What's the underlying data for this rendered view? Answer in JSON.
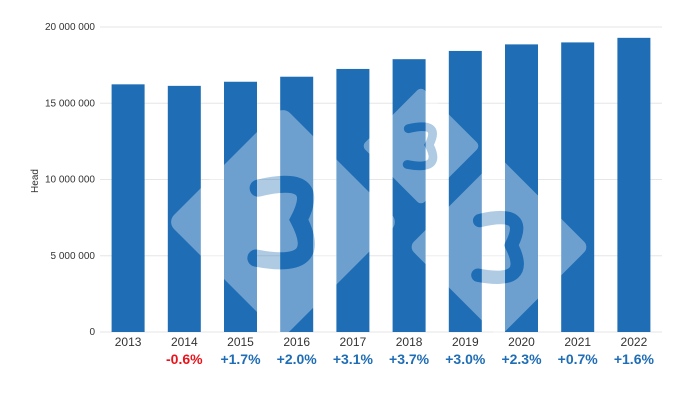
{
  "chart_data": {
    "type": "bar",
    "categories": [
      "2013",
      "2014",
      "2015",
      "2016",
      "2017",
      "2018",
      "2019",
      "2020",
      "2021",
      "2022"
    ],
    "values": [
      16240000,
      16140000,
      16410000,
      16740000,
      17250000,
      17890000,
      18430000,
      18860000,
      18990000,
      19290000
    ],
    "ylabel": "Head",
    "ylim": [
      0,
      20000000
    ],
    "yticks": [
      0,
      5000000,
      10000000,
      15000000,
      20000000
    ],
    "ytick_labels": [
      "0",
      "5 000 000",
      "10 000 000",
      "15 000 000",
      "20 000 000"
    ],
    "changes": [
      "",
      "-0.6%",
      "+1.7%",
      "+2.0%",
      "+3.1%",
      "+3.7%",
      "+3.0%",
      "+2.3%",
      "+0.7%",
      "+1.6%"
    ],
    "grid": true,
    "legend": "none"
  },
  "colors": {
    "bar": "#1e6db5",
    "positive": "#1e6db5",
    "negative": "#e8131b",
    "grid": "#e6e6e6",
    "watermark": "#ffffff"
  },
  "watermark_icon": "diamond-3-logo-icon"
}
